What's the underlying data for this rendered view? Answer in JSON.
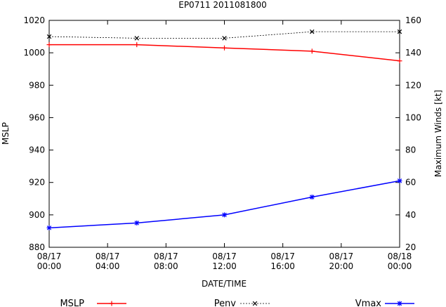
{
  "chart_data": {
    "type": "line",
    "title": "EP0711 2011081800",
    "xlabel": "DATE/TIME",
    "ylabel": "MSLP",
    "y2label": "Maximum Winds [kt]",
    "x_hours": [
      0,
      6,
      12,
      18,
      24
    ],
    "x_ticks": [
      {
        "hour": 0,
        "line1": "08/17",
        "line2": "00:00"
      },
      {
        "hour": 4,
        "line1": "08/17",
        "line2": "04:00"
      },
      {
        "hour": 8,
        "line1": "08/17",
        "line2": "08:00"
      },
      {
        "hour": 12,
        "line1": "08/17",
        "line2": "12:00"
      },
      {
        "hour": 16,
        "line1": "08/17",
        "line2": "16:00"
      },
      {
        "hour": 20,
        "line1": "08/17",
        "line2": "20:00"
      },
      {
        "hour": 24,
        "line1": "08/18",
        "line2": "00:00"
      }
    ],
    "xlim": [
      0,
      24
    ],
    "ylim": [
      880,
      1020
    ],
    "y_ticks": [
      880,
      900,
      920,
      940,
      960,
      980,
      1000,
      1020
    ],
    "y2lim": [
      20,
      160
    ],
    "y2_ticks": [
      20,
      40,
      60,
      80,
      100,
      120,
      140,
      160
    ],
    "series": [
      {
        "name": "MSLP",
        "axis": "left",
        "color": "#ff0000",
        "marker": "plus",
        "dash": false,
        "values": [
          1005,
          1005,
          1003,
          1001,
          995
        ]
      },
      {
        "name": "Penv",
        "axis": "left",
        "color": "#000000",
        "marker": "x",
        "dash": true,
        "values": [
          1010,
          1009,
          1009,
          1013,
          1013
        ]
      },
      {
        "name": "Vmax",
        "axis": "right",
        "color": "#0000ff",
        "marker": "star",
        "dash": false,
        "values": [
          32,
          35,
          40,
          51,
          61
        ]
      }
    ],
    "legend_position": "bottom"
  }
}
